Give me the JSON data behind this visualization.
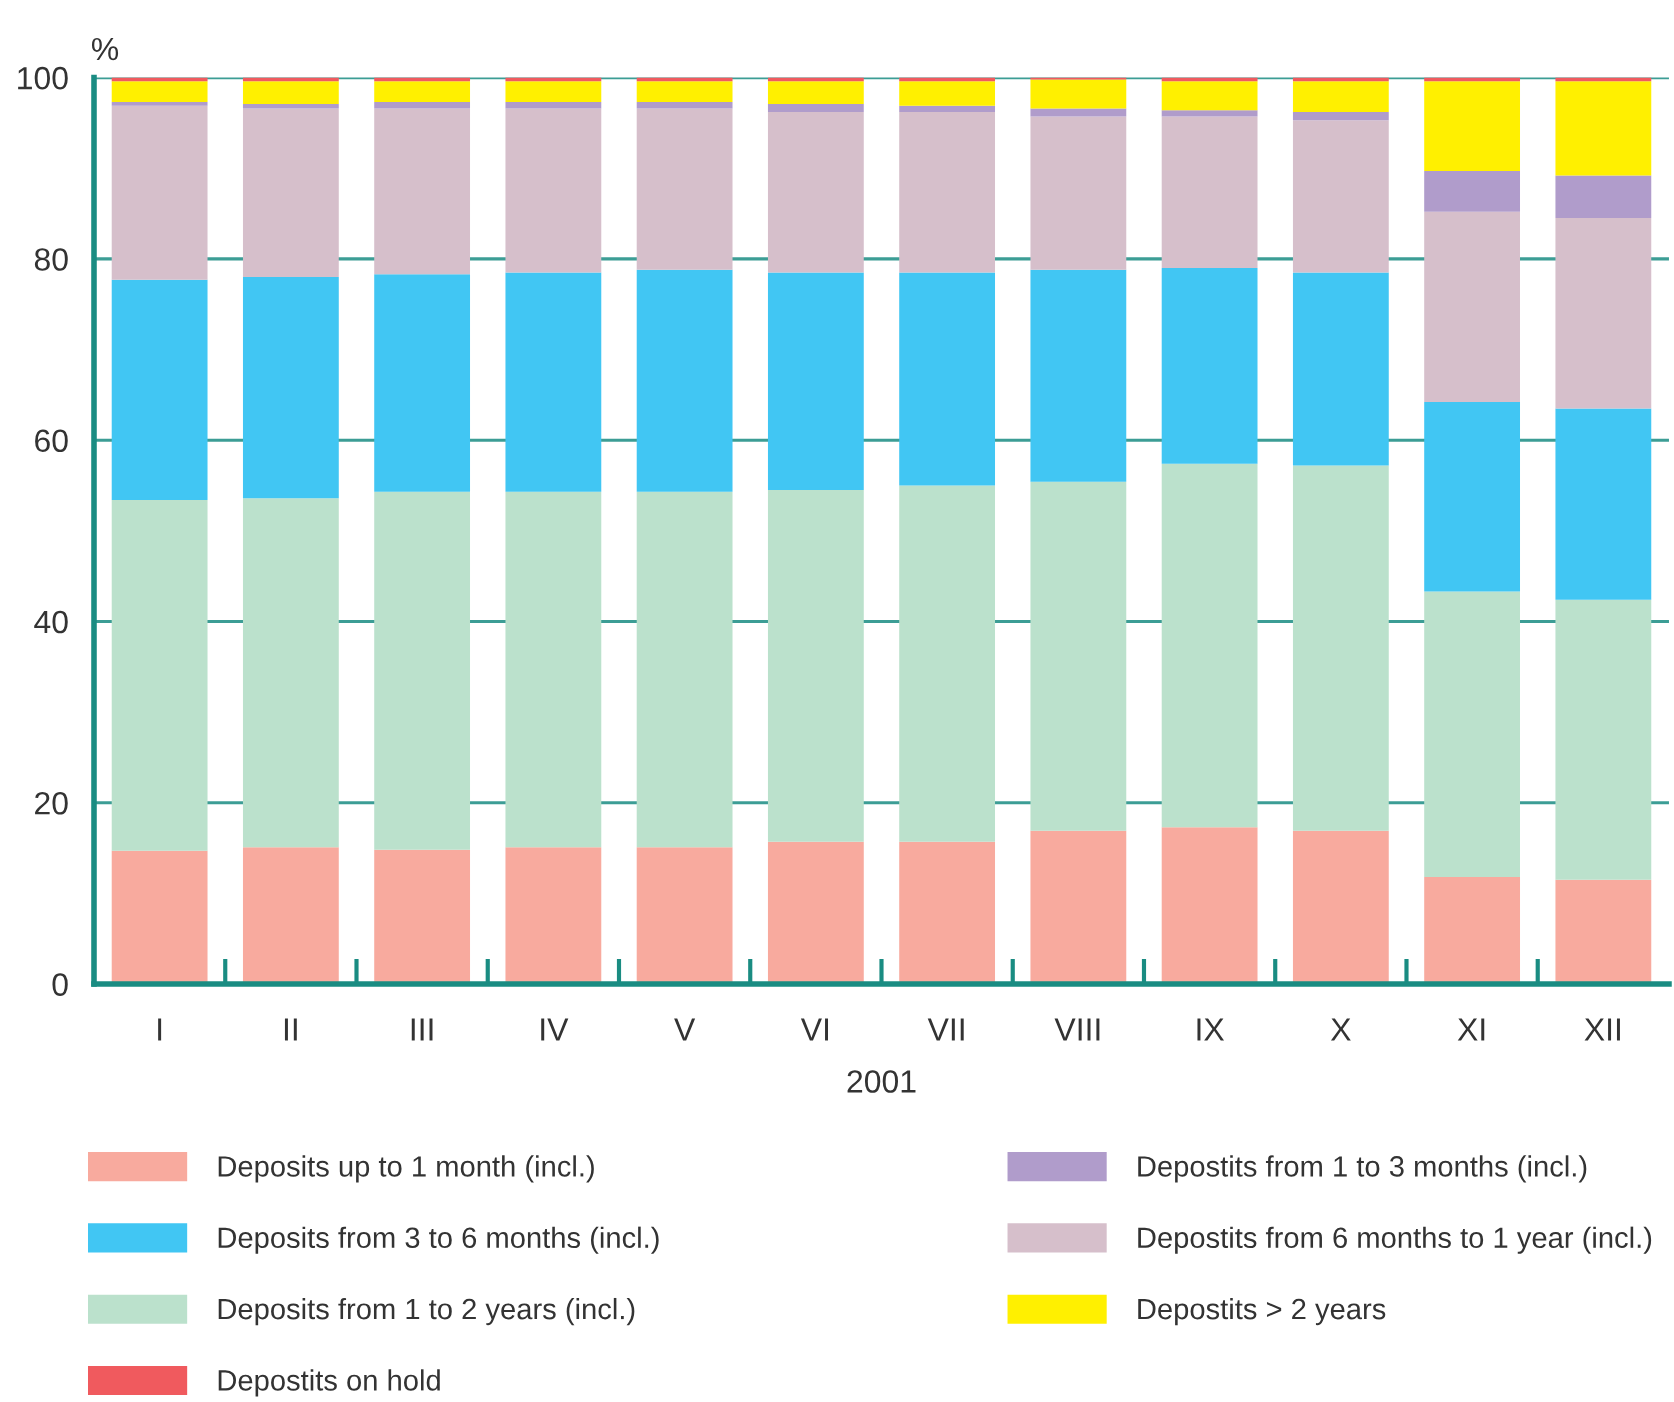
{
  "chart_data": {
    "type": "bar",
    "stacked": true,
    "ylabel": "%",
    "xlabel": "2001",
    "categories": [
      "I",
      "II",
      "III",
      "IV",
      "V",
      "VI",
      "VII",
      "VIII",
      "IX",
      "X",
      "XI",
      "XII"
    ],
    "ylim": [
      0,
      100
    ],
    "yticks": [
      0,
      20,
      40,
      60,
      80,
      100
    ],
    "grid": "y",
    "legend": "bottom",
    "series": [
      {
        "name": "Deposits up to 1 month (incl.)",
        "color": "#f8aa9e",
        "values": [
          14.7,
          15.1,
          14.8,
          15.1,
          15.1,
          15.7,
          15.7,
          16.9,
          17.3,
          16.9,
          11.8,
          11.5
        ]
      },
      {
        "name": "Deposits from 1 to 2 years (incl.)",
        "color": "#bbe1cc",
        "values": [
          38.7,
          38.5,
          39.5,
          39.2,
          39.2,
          38.8,
          39.3,
          38.5,
          40.1,
          40.3,
          31.5,
          30.9
        ]
      },
      {
        "name": "Deposits from 3 to 6 months (incl.)",
        "color": "#41c6f3",
        "values": [
          24.3,
          24.4,
          24.0,
          24.2,
          24.5,
          24.0,
          23.5,
          23.4,
          21.6,
          21.3,
          20.9,
          21.1
        ]
      },
      {
        "name": "Depostits from 6 months to 1 year (incl.)",
        "color": "#d6bfcb",
        "values": [
          19.2,
          18.6,
          18.3,
          18.1,
          17.8,
          17.7,
          17.7,
          16.9,
          16.7,
          16.8,
          21.0,
          21.0
        ]
      },
      {
        "name": "Depostits from 1 to 3 months (incl.)",
        "color": "#b09ccb",
        "values": [
          0.4,
          0.5,
          0.7,
          0.7,
          0.7,
          0.9,
          0.7,
          0.9,
          0.7,
          0.9,
          4.5,
          4.7
        ]
      },
      {
        "name": "Depostits > 2 years",
        "color": "#fff000",
        "values": [
          2.3,
          2.5,
          2.3,
          2.3,
          2.3,
          2.5,
          2.7,
          3.2,
          3.2,
          3.4,
          9.9,
          10.4
        ]
      },
      {
        "name": "Depostits on hold",
        "color": "#f05a5e",
        "values": [
          0.4,
          0.4,
          0.4,
          0.4,
          0.4,
          0.4,
          0.4,
          0.2,
          0.4,
          0.4,
          0.4,
          0.4
        ]
      }
    ]
  }
}
